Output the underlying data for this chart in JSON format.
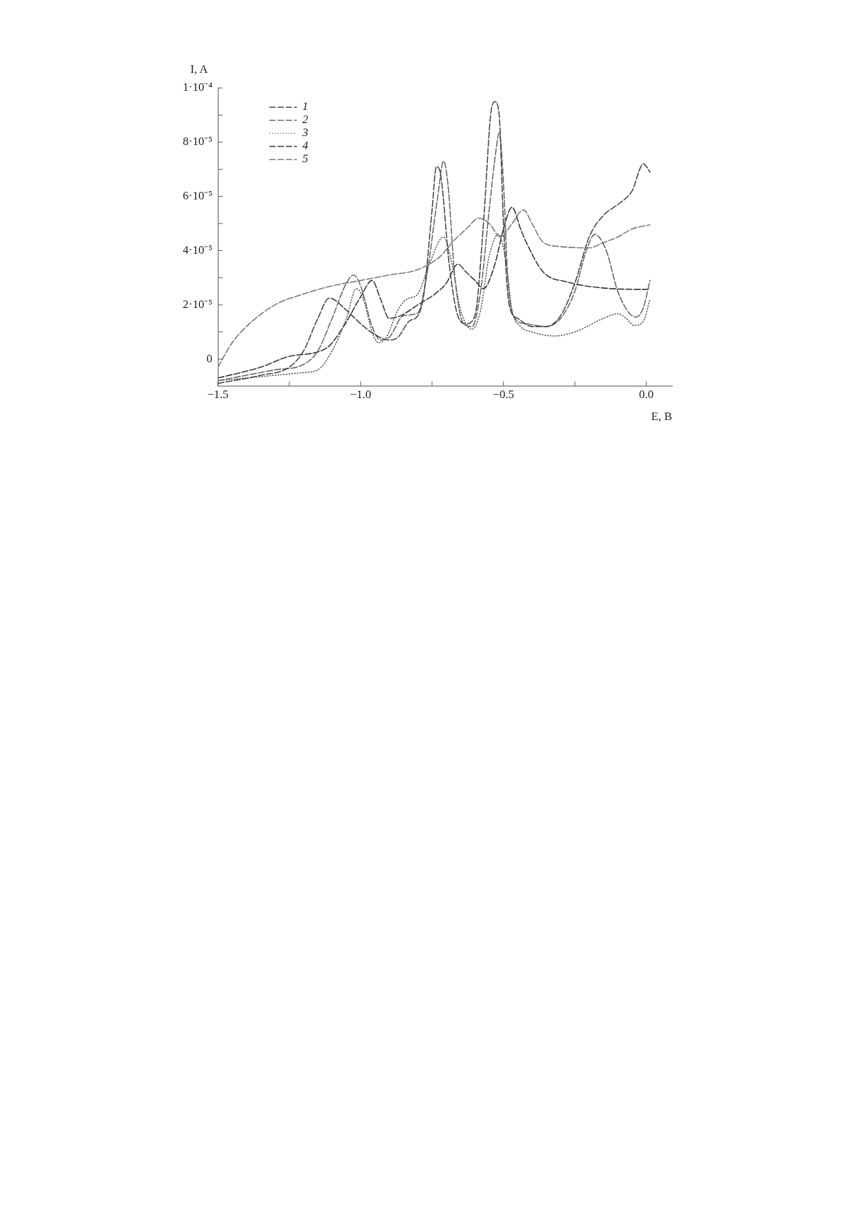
{
  "chart_data": {
    "type": "line",
    "xlabel": "E, B",
    "ylabel": "I, A",
    "xlim": [
      -1.5,
      0.09
    ],
    "ylim": [
      -1e-05,
      0.0001
    ],
    "xticks": [
      {
        "value": -1.5,
        "label": "−1.5"
      },
      {
        "value": -1.25,
        "label": null
      },
      {
        "value": -1.0,
        "label": "−1.0"
      },
      {
        "value": -0.75,
        "label": null
      },
      {
        "value": -0.5,
        "label": "−0.5"
      },
      {
        "value": -0.25,
        "label": null
      },
      {
        "value": 0.0,
        "label": "0.0"
      }
    ],
    "yticks": [
      0,
      {
        "value": 1e-05,
        "label": null
      },
      {
        "value": 2e-05,
        "label": "2·10⁻⁵"
      },
      {
        "value": 3e-05,
        "label": null
      },
      {
        "value": 4e-05,
        "label": "4·10⁻⁵"
      },
      {
        "value": 5e-05,
        "label": null
      },
      {
        "value": 6e-05,
        "label": "6·10⁻⁵"
      },
      {
        "value": 7e-05,
        "label": null
      },
      {
        "value": 8e-05,
        "label": "8·10⁻⁵"
      },
      {
        "value": 9e-05,
        "label": null
      },
      {
        "value": 0.0001,
        "label": "1·10⁻⁴"
      }
    ],
    "grid": false,
    "legend": "top left",
    "marker": "none",
    "series": [
      {
        "name": "1",
        "color": "#444444",
        "line_style": "dashed",
        "x": [
          -1.5,
          -1.35,
          -1.25,
          -1.2,
          -1.15,
          -1.11,
          -1.05,
          -1.0,
          -0.95,
          -0.9,
          -0.87,
          -0.83,
          -0.8,
          -0.78,
          -0.75,
          -0.735,
          -0.72,
          -0.69,
          -0.66,
          -0.63,
          -0.6,
          -0.57,
          -0.545,
          -0.53,
          -0.515,
          -0.5,
          -0.48,
          -0.45,
          -0.4,
          -0.35,
          -0.3,
          -0.25,
          -0.2,
          -0.15,
          -0.1,
          -0.05,
          -0.01,
          0.013
        ],
        "values": [
          -9e-06,
          -6e-06,
          -3e-06,
          3e-06,
          1.5e-05,
          2.25e-05,
          1.8e-05,
          1.3e-05,
          9e-06,
          7e-06,
          8e-06,
          1.4e-05,
          1.6e-05,
          2.3e-05,
          5.5e-05,
          7.1e-05,
          6.8e-05,
          3.5e-05,
          1.6e-05,
          1.3e-05,
          1.6e-05,
          5e-05,
          9e-05,
          9.5e-05,
          9e-05,
          5e-05,
          2e-05,
          1.5e-05,
          1.2e-05,
          1.2e-05,
          1.6e-05,
          2.8e-05,
          4.5e-05,
          5.3e-05,
          5.7e-05,
          6.2e-05,
          7.2e-05,
          6.9e-05
        ]
      },
      {
        "name": "2",
        "color": "#666666",
        "line_style": "dashed",
        "x": [
          -1.5,
          -1.3,
          -1.2,
          -1.15,
          -1.1,
          -1.05,
          -1.025,
          -1.0,
          -0.96,
          -0.93,
          -0.9,
          -0.85,
          -0.8,
          -0.77,
          -0.73,
          -0.71,
          -0.695,
          -0.67,
          -0.64,
          -0.61,
          -0.58,
          -0.55,
          -0.525,
          -0.515,
          -0.5,
          -0.485,
          -0.46,
          -0.42,
          -0.35,
          -0.3,
          -0.25,
          -0.21,
          -0.18,
          -0.14,
          -0.1,
          -0.06,
          -0.035,
          -0.01,
          0.013
        ],
        "values": [
          -8e-06,
          -4e-06,
          -2e-06,
          3e-06,
          1.5e-05,
          2.8e-05,
          3.1e-05,
          2.7e-05,
          1.2e-05,
          7e-06,
          8e-06,
          1.6e-05,
          1.7e-05,
          3e-05,
          6e-05,
          7.3e-05,
          6.5e-05,
          3e-05,
          1.3e-05,
          1.2e-05,
          2.5e-05,
          5.5e-05,
          7.8e-05,
          8.35e-05,
          6.5e-05,
          3e-05,
          1.5e-05,
          1.3e-05,
          1.2e-05,
          1.5e-05,
          2.5e-05,
          4e-05,
          4.6e-05,
          4e-05,
          2.5e-05,
          1.7e-05,
          1.55e-05,
          1.9e-05,
          2.9e-05
        ]
      },
      {
        "name": "3",
        "color": "#555555",
        "line_style": "dotted",
        "x": [
          -1.5,
          -1.3,
          -1.2,
          -1.15,
          -1.1,
          -1.05,
          -1.015,
          -0.99,
          -0.96,
          -0.937,
          -0.91,
          -0.87,
          -0.84,
          -0.8,
          -0.76,
          -0.71,
          -0.68,
          -0.65,
          -0.61,
          -0.58,
          -0.55,
          -0.517,
          -0.49,
          -0.47,
          -0.44,
          -0.4,
          -0.32,
          -0.25,
          -0.15,
          -0.1,
          -0.07,
          -0.043,
          -0.01,
          0.013
        ],
        "values": [
          -8e-06,
          -6e-06,
          -5e-06,
          -4e-06,
          3e-06,
          1.5e-05,
          2.6e-05,
          2.2e-05,
          1e-05,
          6e-06,
          8e-06,
          1.8e-05,
          2.2e-05,
          2.4e-05,
          3.5e-05,
          4.5e-05,
          3.5e-05,
          1.8e-05,
          1.1e-05,
          1.8e-05,
          3.8e-05,
          4.6e-05,
          3.5e-05,
          1.8e-05,
          1.2e-05,
          1e-05,
          8.5e-06,
          1e-05,
          1.5e-05,
          1.67e-05,
          1.5e-05,
          1.24e-05,
          1.4e-05,
          2.2e-05
        ]
      },
      {
        "name": "4",
        "color": "#333333",
        "line_style": "dashed",
        "x": [
          -1.5,
          -1.35,
          -1.25,
          -1.12,
          -1.06,
          -1.0,
          -0.96,
          -0.93,
          -0.9,
          -0.86,
          -0.8,
          -0.74,
          -0.7,
          -0.66,
          -0.63,
          -0.6,
          -0.57,
          -0.53,
          -0.5,
          -0.47,
          -0.44,
          -0.42,
          -0.36,
          -0.28,
          -0.15,
          0.0,
          0.013
        ],
        "values": [
          -7e-06,
          -3e-06,
          1e-06,
          4e-06,
          1.2e-05,
          2.3e-05,
          2.9e-05,
          2.2e-05,
          1.5e-05,
          1.6e-05,
          2e-05,
          2.4e-05,
          2.8e-05,
          3.5e-05,
          3.2e-05,
          2.9e-05,
          2.6e-05,
          3.5e-05,
          4.8e-05,
          5.6e-05,
          4.8e-05,
          4.3e-05,
          3.2e-05,
          2.85e-05,
          2.62e-05,
          2.57e-05,
          2.62e-05
        ]
      },
      {
        "name": "5",
        "color": "#777777",
        "line_style": "dashed",
        "x": [
          -1.5,
          -1.45,
          -1.4,
          -1.3,
          -1.2,
          -1.1,
          -1.0,
          -0.9,
          -0.8,
          -0.72,
          -0.68,
          -0.63,
          -0.586,
          -0.55,
          -0.51,
          -0.47,
          -0.43,
          -0.4,
          -0.36,
          -0.3,
          -0.2,
          -0.15,
          -0.1,
          -0.05,
          0.013
        ],
        "values": [
          -3e-06,
          6e-06,
          1.2e-05,
          2e-05,
          2.4e-05,
          2.7e-05,
          2.9e-05,
          3.1e-05,
          3.3e-05,
          3.8e-05,
          4.3e-05,
          4.8e-05,
          5.2e-05,
          5e-05,
          4.5e-05,
          5e-05,
          5.5e-05,
          5e-05,
          4.3e-05,
          4.15e-05,
          4.1e-05,
          4.3e-05,
          4.5e-05,
          4.8e-05,
          4.95e-05
        ]
      }
    ]
  }
}
